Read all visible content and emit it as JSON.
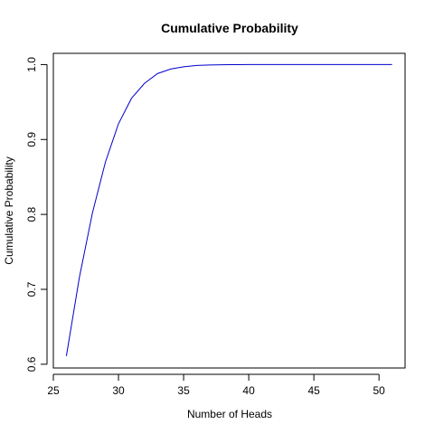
{
  "chart_data": {
    "type": "line",
    "title": "Cumulative Probability",
    "xlabel": "Number of Heads",
    "ylabel": "Cumulative Probability",
    "xlim": [
      25,
      52
    ],
    "ylim": [
      0.595,
      1.015
    ],
    "xticks": [
      25,
      30,
      35,
      40,
      45,
      50
    ],
    "yticks": [
      0.6,
      0.7,
      0.8,
      0.9,
      1.0
    ],
    "xtick_labels": [
      "25",
      "30",
      "35",
      "40",
      "45",
      "50"
    ],
    "ytick_labels": [
      "0.6",
      "0.7",
      "0.8",
      "0.9",
      "1.0"
    ],
    "grid": false,
    "series": [
      {
        "color": "#0000cc",
        "x": [
          26,
          27,
          28,
          29,
          30,
          31,
          32,
          33,
          34,
          35,
          36,
          37,
          38,
          39,
          40,
          41,
          42,
          43,
          44,
          45,
          46,
          47,
          48,
          49,
          50,
          51
        ],
        "y": [
          0.611,
          0.716,
          0.802,
          0.87,
          0.921,
          0.955,
          0.975,
          0.988,
          0.994,
          0.997,
          0.9988,
          0.9995,
          0.9998,
          0.9999,
          1.0,
          1.0,
          1.0,
          1.0,
          1.0,
          1.0,
          1.0,
          1.0,
          1.0,
          1.0,
          1.0,
          1.0
        ]
      }
    ]
  }
}
